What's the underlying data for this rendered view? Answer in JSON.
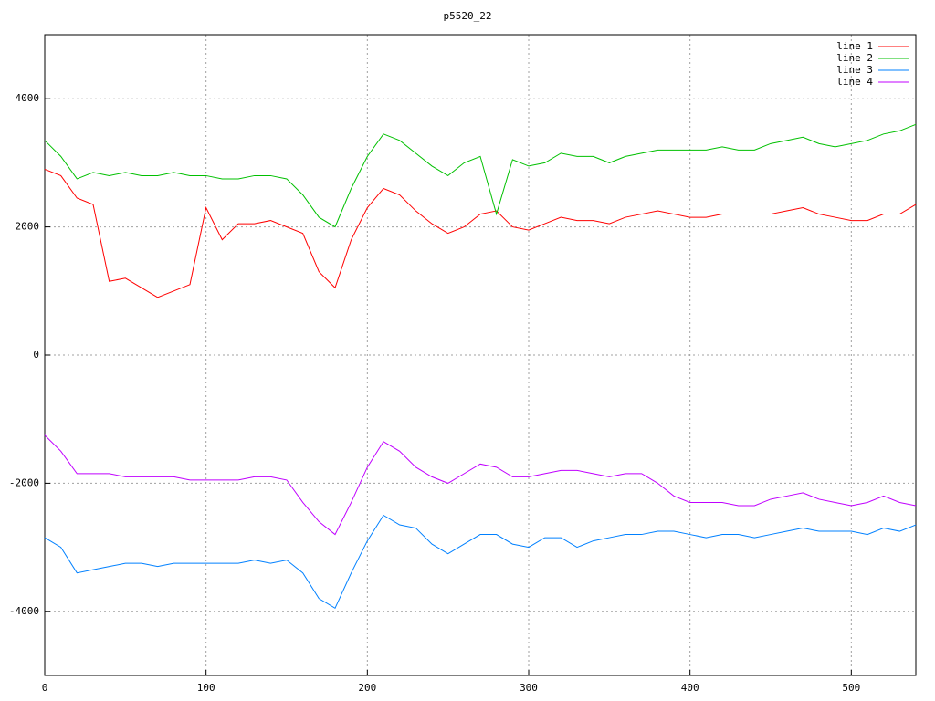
{
  "chart_data": {
    "type": "line",
    "title": "p5520_22",
    "x": [
      0,
      10,
      20,
      30,
      40,
      50,
      60,
      70,
      80,
      90,
      100,
      110,
      120,
      130,
      140,
      150,
      160,
      170,
      180,
      190,
      200,
      210,
      220,
      230,
      240,
      250,
      260,
      270,
      280,
      290,
      300,
      310,
      320,
      330,
      340,
      350,
      360,
      370,
      380,
      390,
      400,
      410,
      420,
      430,
      440,
      450,
      460,
      470,
      480,
      490,
      500,
      510,
      520,
      530,
      540
    ],
    "series": [
      {
        "name": "line 1",
        "color": "#ff0000",
        "values": [
          2900,
          2800,
          2450,
          2350,
          1150,
          1200,
          1050,
          900,
          1000,
          1100,
          2300,
          1800,
          2050,
          2050,
          2100,
          2000,
          1900,
          1300,
          1050,
          1800,
          2300,
          2600,
          2500,
          2250,
          2050,
          1900,
          2000,
          2200,
          2250,
          2000,
          1950,
          2050,
          2150,
          2100,
          2100,
          2050,
          2150,
          2200,
          2250,
          2200,
          2150,
          2150,
          2200,
          2200,
          2200,
          2200,
          2250,
          2300,
          2200,
          2150,
          2100,
          2100,
          2200,
          2200,
          2350
        ]
      },
      {
        "name": "line 2",
        "color": "#00c000",
        "values": [
          3350,
          3100,
          2750,
          2850,
          2800,
          2850,
          2800,
          2800,
          2850,
          2800,
          2800,
          2750,
          2750,
          2800,
          2800,
          2750,
          2500,
          2150,
          2000,
          2600,
          3100,
          3450,
          3350,
          3150,
          2950,
          2800,
          3000,
          3100,
          2200,
          3050,
          2950,
          3000,
          3150,
          3100,
          3100,
          3000,
          3100,
          3150,
          3200,
          3200,
          3200,
          3200,
          3250,
          3200,
          3200,
          3300,
          3350,
          3400,
          3300,
          3250,
          3300,
          3350,
          3450,
          3500,
          3600
        ]
      },
      {
        "name": "line 3",
        "color": "#0080ff",
        "values": [
          -2850,
          -3000,
          -3400,
          -3350,
          -3300,
          -3250,
          -3250,
          -3300,
          -3250,
          -3250,
          -3250,
          -3250,
          -3250,
          -3200,
          -3250,
          -3200,
          -3400,
          -3800,
          -3950,
          -3400,
          -2900,
          -2500,
          -2650,
          -2700,
          -2950,
          -3100,
          -2950,
          -2800,
          -2800,
          -2950,
          -3000,
          -2850,
          -2850,
          -3000,
          -2900,
          -2850,
          -2800,
          -2800,
          -2750,
          -2750,
          -2800,
          -2850,
          -2800,
          -2800,
          -2850,
          -2800,
          -2750,
          -2700,
          -2750,
          -2750,
          -2750,
          -2800,
          -2700,
          -2750,
          -2650
        ]
      },
      {
        "name": "line 4",
        "color": "#c000ff",
        "values": [
          -1250,
          -1500,
          -1850,
          -1850,
          -1850,
          -1900,
          -1900,
          -1900,
          -1900,
          -1950,
          -1950,
          -1950,
          -1950,
          -1900,
          -1900,
          -1950,
          -2300,
          -2600,
          -2800,
          -2300,
          -1750,
          -1350,
          -1500,
          -1750,
          -1900,
          -2000,
          -1850,
          -1700,
          -1750,
          -1900,
          -1900,
          -1850,
          -1800,
          -1800,
          -1850,
          -1900,
          -1850,
          -1850,
          -2000,
          -2200,
          -2300,
          -2300,
          -2300,
          -2350,
          -2350,
          -2250,
          -2200,
          -2150,
          -2250,
          -2300,
          -2350,
          -2300,
          -2200,
          -2300,
          -2350
        ]
      }
    ],
    "xlim": [
      0,
      540
    ],
    "xticks": [
      0,
      100,
      200,
      300,
      400,
      500
    ],
    "ylim": [
      -5000,
      5000
    ],
    "yticks": [
      -4000,
      -2000,
      0,
      2000,
      4000
    ],
    "grid": true,
    "legend": "top-right"
  }
}
